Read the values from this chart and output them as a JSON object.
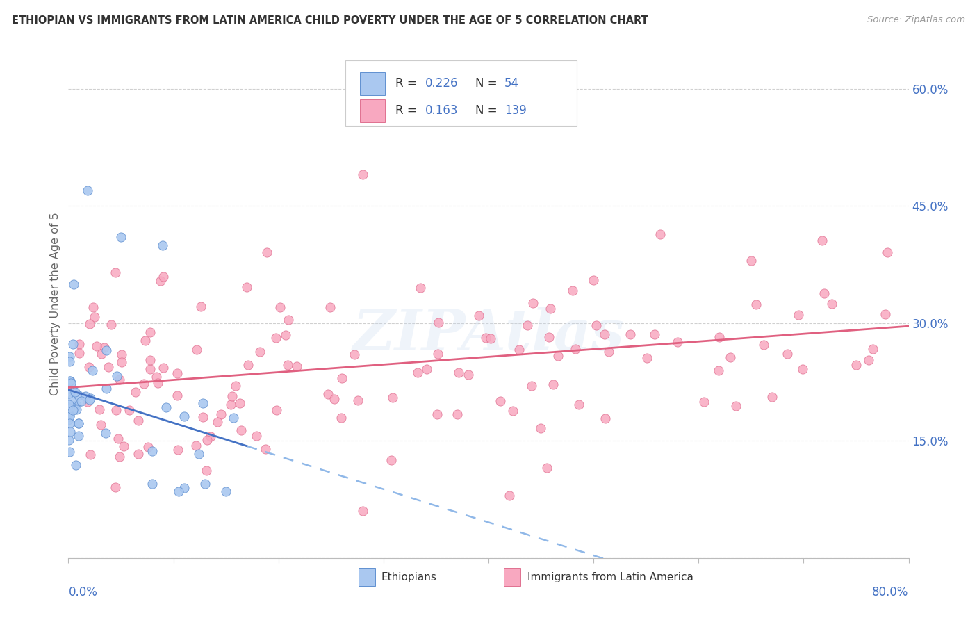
{
  "title": "ETHIOPIAN VS IMMIGRANTS FROM LATIN AMERICA CHILD POVERTY UNDER THE AGE OF 5 CORRELATION CHART",
  "source": "Source: ZipAtlas.com",
  "ylabel": "Child Poverty Under the Age of 5",
  "color_eth_fill": "#aac8f0",
  "color_eth_edge": "#6090d0",
  "color_lat_fill": "#f8a8c0",
  "color_lat_edge": "#e07090",
  "color_blue_text": "#4472c4",
  "color_trend_blue_solid": "#4472c4",
  "color_trend_blue_dash": "#90b8e8",
  "color_trend_pink": "#e06080",
  "xlim": [
    0.0,
    0.8
  ],
  "ylim": [
    0.0,
    0.65
  ],
  "right_yticks": [
    0.0,
    0.15,
    0.3,
    0.45,
    0.6
  ],
  "right_yticklabels": [
    "",
    "15.0%",
    "30.0%",
    "45.0%",
    "60.0%"
  ],
  "watermark": "ZIPAtlas",
  "N_eth": 54,
  "N_lat": 139
}
